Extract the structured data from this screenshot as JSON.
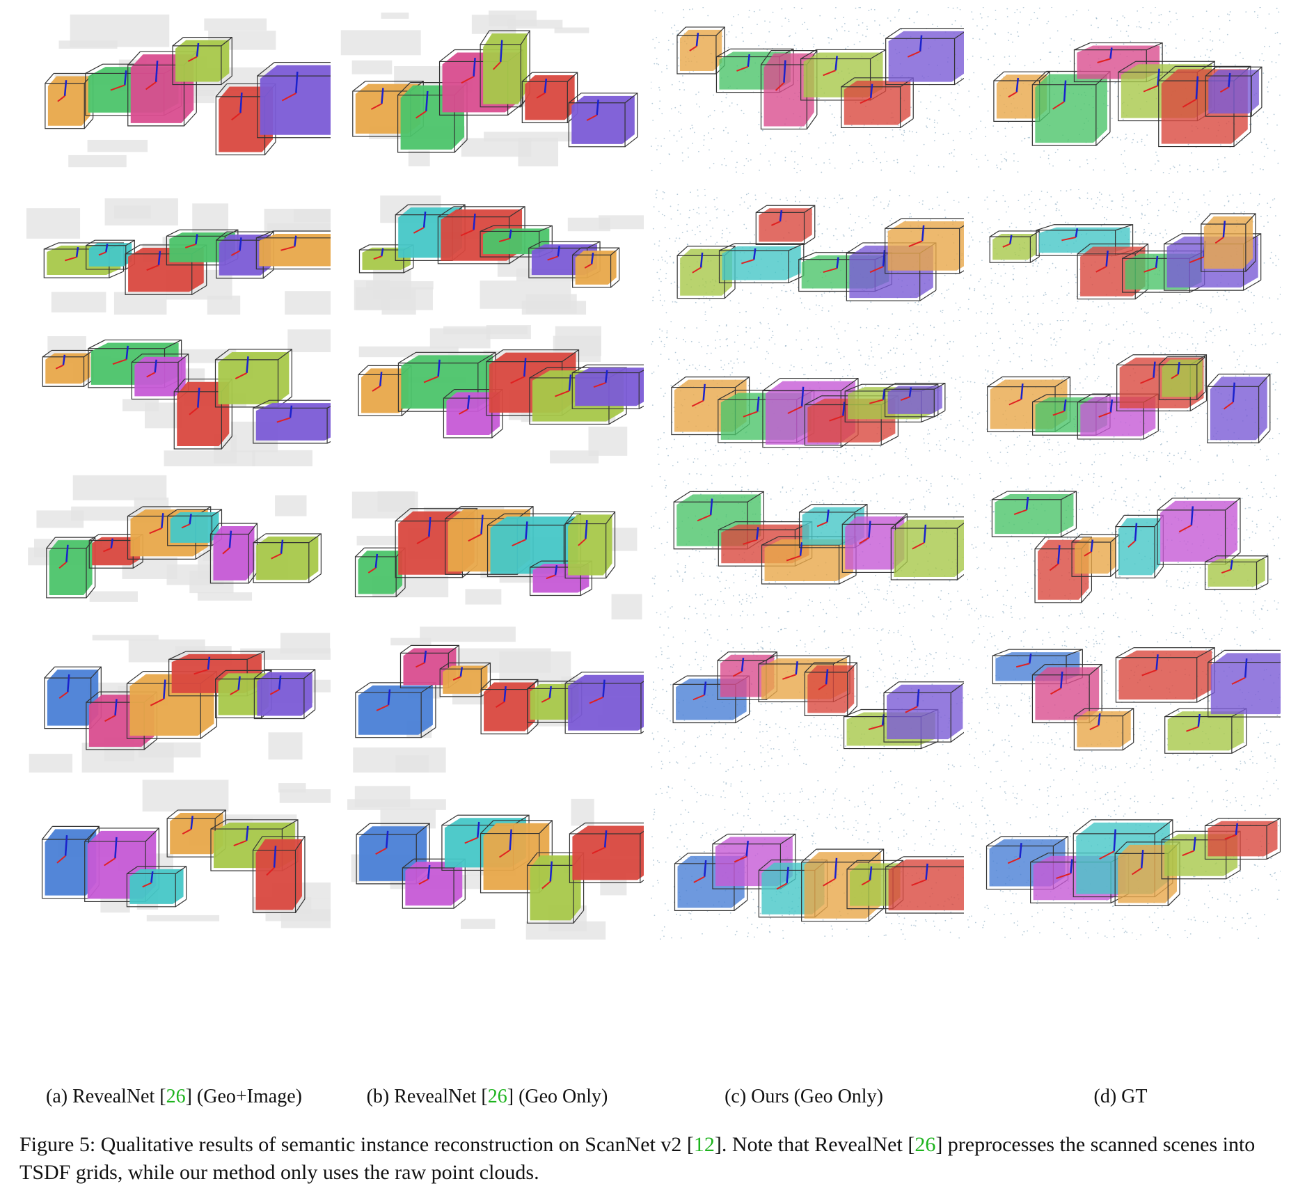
{
  "figure": {
    "number_label": "Figure 5:",
    "caption_parts": [
      {
        "text": "Qualitative results of semantic instance reconstruction on ScanNet v2 [",
        "ref": false
      },
      {
        "text": "12",
        "ref": true
      },
      {
        "text": "]. Note that RevealNet [",
        "ref": false
      },
      {
        "text": "26",
        "ref": true
      },
      {
        "text": "] preprocesses the scanned scenes into TSDF grids, while our method only uses the raw point clouds.",
        "ref": false
      }
    ]
  },
  "columns": [
    {
      "id": "a",
      "prefix": "(a) RevealNet [",
      "ref": "26",
      "suffix": "] (Geo+Image)",
      "style": "tsdf"
    },
    {
      "id": "b",
      "prefix": "(b) RevealNet [",
      "ref": "26",
      "suffix": "] (Geo Only)",
      "style": "tsdf"
    },
    {
      "id": "c",
      "prefix": "(c) Ours (Geo Only)",
      "ref": "",
      "suffix": "",
      "style": "points"
    },
    {
      "id": "d",
      "prefix": "(d) GT",
      "ref": "",
      "suffix": "",
      "style": "points"
    }
  ],
  "scenes": [
    {
      "name": "scene-1",
      "object_colors": [
        "#e8a84a",
        "#4cc46a",
        "#d94d8f",
        "#a8c84a",
        "#d9483f",
        "#7b5bd6"
      ]
    },
    {
      "name": "scene-2",
      "object_colors": [
        "#a8c84a",
        "#46c7c7",
        "#d9483f",
        "#4cc46a",
        "#7b5bd6",
        "#e8a84a"
      ]
    },
    {
      "name": "scene-3",
      "object_colors": [
        "#e8a84a",
        "#4cc46a",
        "#c65ad6",
        "#d9483f",
        "#a8c84a",
        "#7b5bd6"
      ]
    },
    {
      "name": "scene-4",
      "object_colors": [
        "#4cc46a",
        "#d9483f",
        "#e8a84a",
        "#46c7c7",
        "#c65ad6",
        "#a8c84a"
      ]
    },
    {
      "name": "scene-5",
      "object_colors": [
        "#4a7fd6",
        "#d94d8f",
        "#e8a84a",
        "#d9483f",
        "#a8c84a",
        "#7b5bd6"
      ]
    },
    {
      "name": "scene-6",
      "object_colors": [
        "#4a7fd6",
        "#c65ad6",
        "#46c7c7",
        "#e8a84a",
        "#a8c84a",
        "#d9483f"
      ]
    }
  ],
  "colors": {
    "reference": "#1db31d",
    "tsdf_background": "#e4e4e4",
    "point_color": "#5a8aa8",
    "box_stroke": "#333333"
  }
}
